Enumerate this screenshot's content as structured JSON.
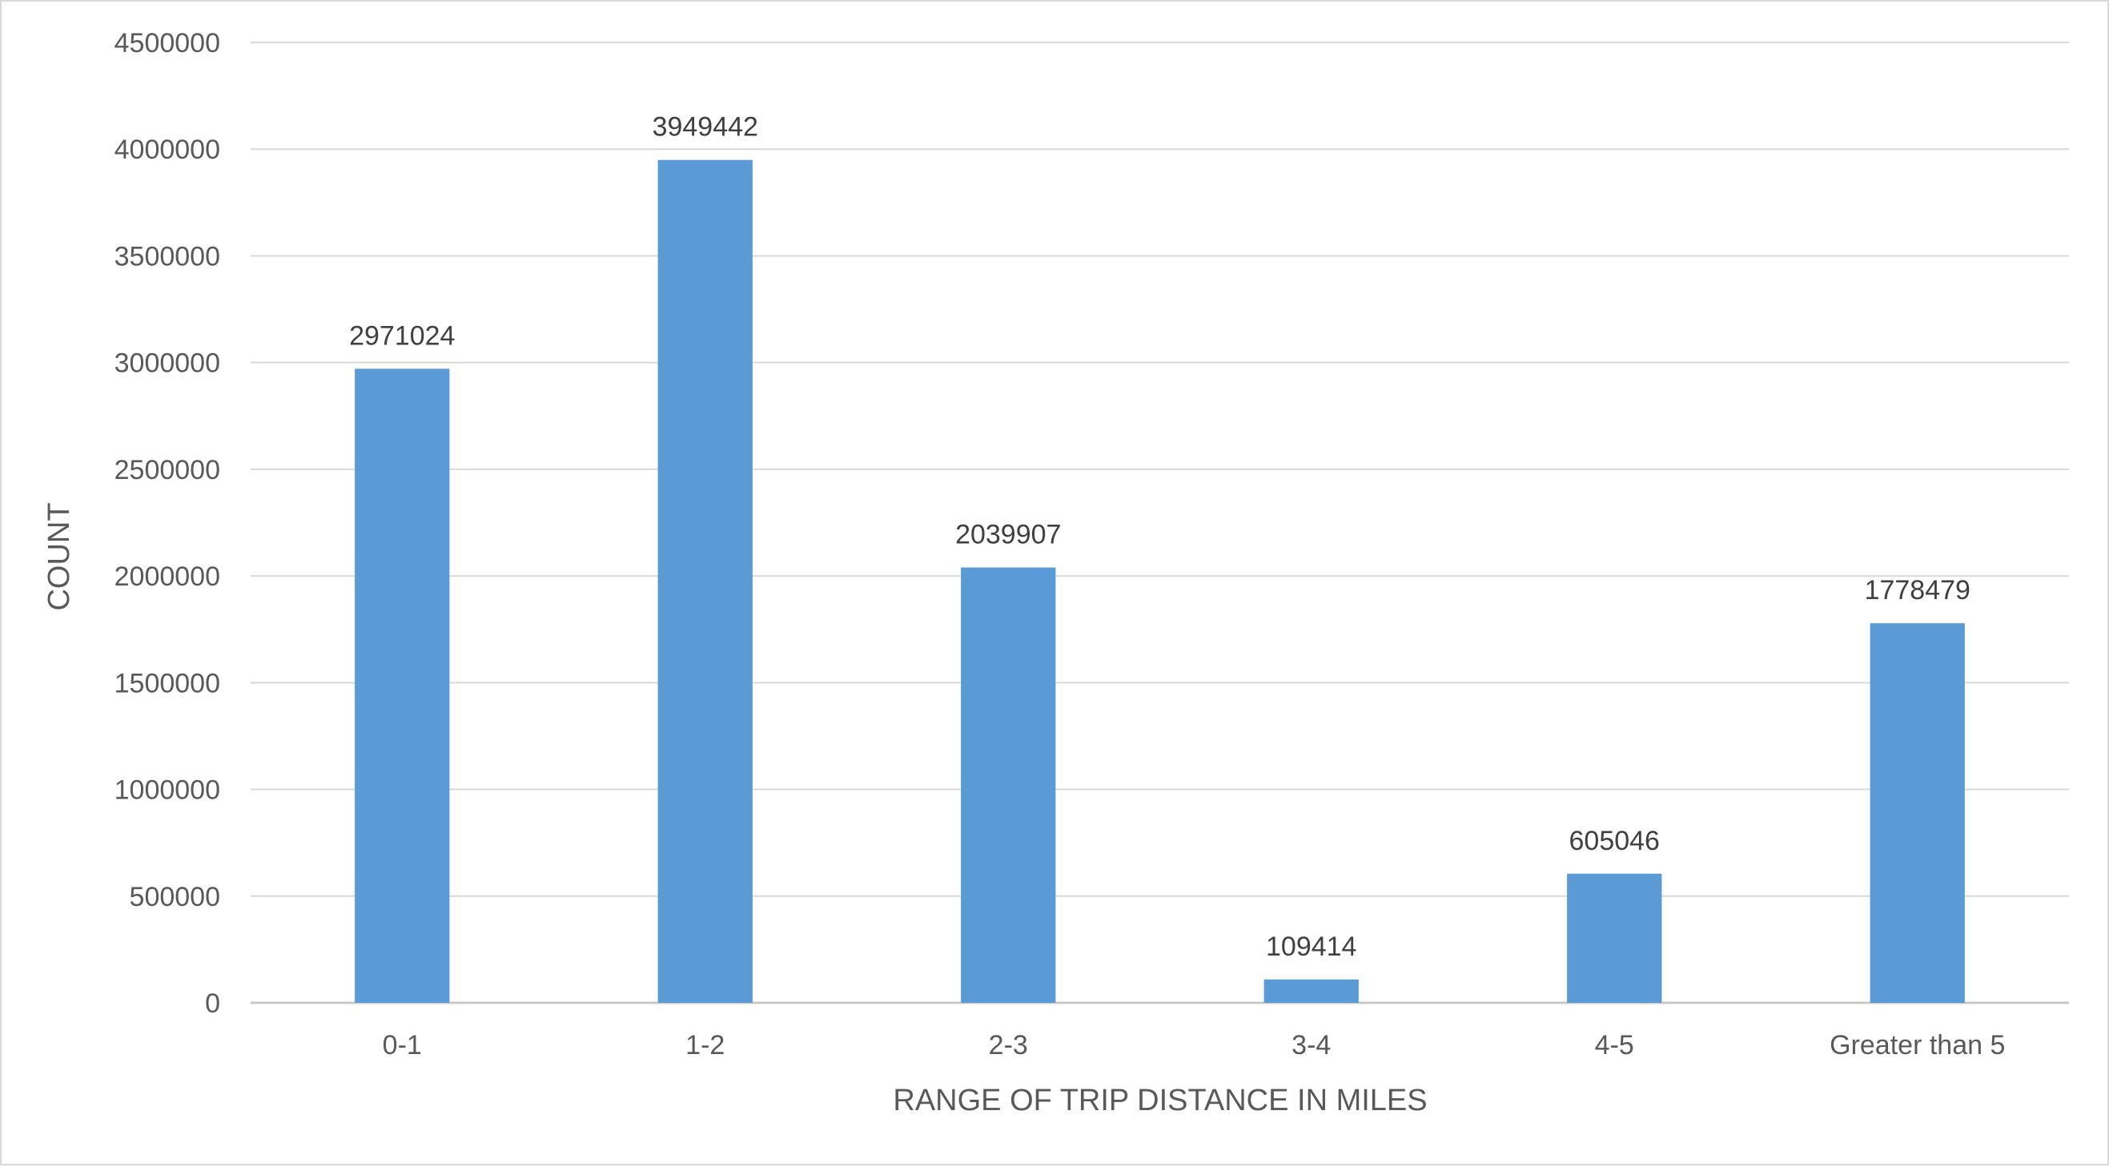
{
  "chart_data": {
    "type": "bar",
    "title": "",
    "xlabel": "RANGE OF TRIP DISTANCE IN MILES",
    "ylabel": "COUNT",
    "categories": [
      "0-1",
      "1-2",
      "2-3",
      "3-4",
      "4-5",
      "Greater than 5"
    ],
    "values": [
      2971024,
      3949442,
      2039907,
      109414,
      605046,
      1778479
    ],
    "data_labels": [
      "2971024",
      "3949442",
      "2039907",
      "109414",
      "605046",
      "1778479"
    ],
    "ylim": [
      0,
      4500000
    ],
    "y_ticks": [
      0,
      500000,
      1000000,
      1500000,
      2000000,
      2500000,
      3000000,
      3500000,
      4000000,
      4500000
    ],
    "y_tick_labels": [
      "0",
      "500000",
      "1000000",
      "1500000",
      "2000000",
      "2500000",
      "3000000",
      "3500000",
      "4000000",
      "4500000"
    ],
    "grid": true,
    "legend": "none",
    "colors": {
      "bar": "#5b9bd5",
      "grid": "#d9d9d9",
      "text": "#595959",
      "data_label": "#404040"
    }
  }
}
